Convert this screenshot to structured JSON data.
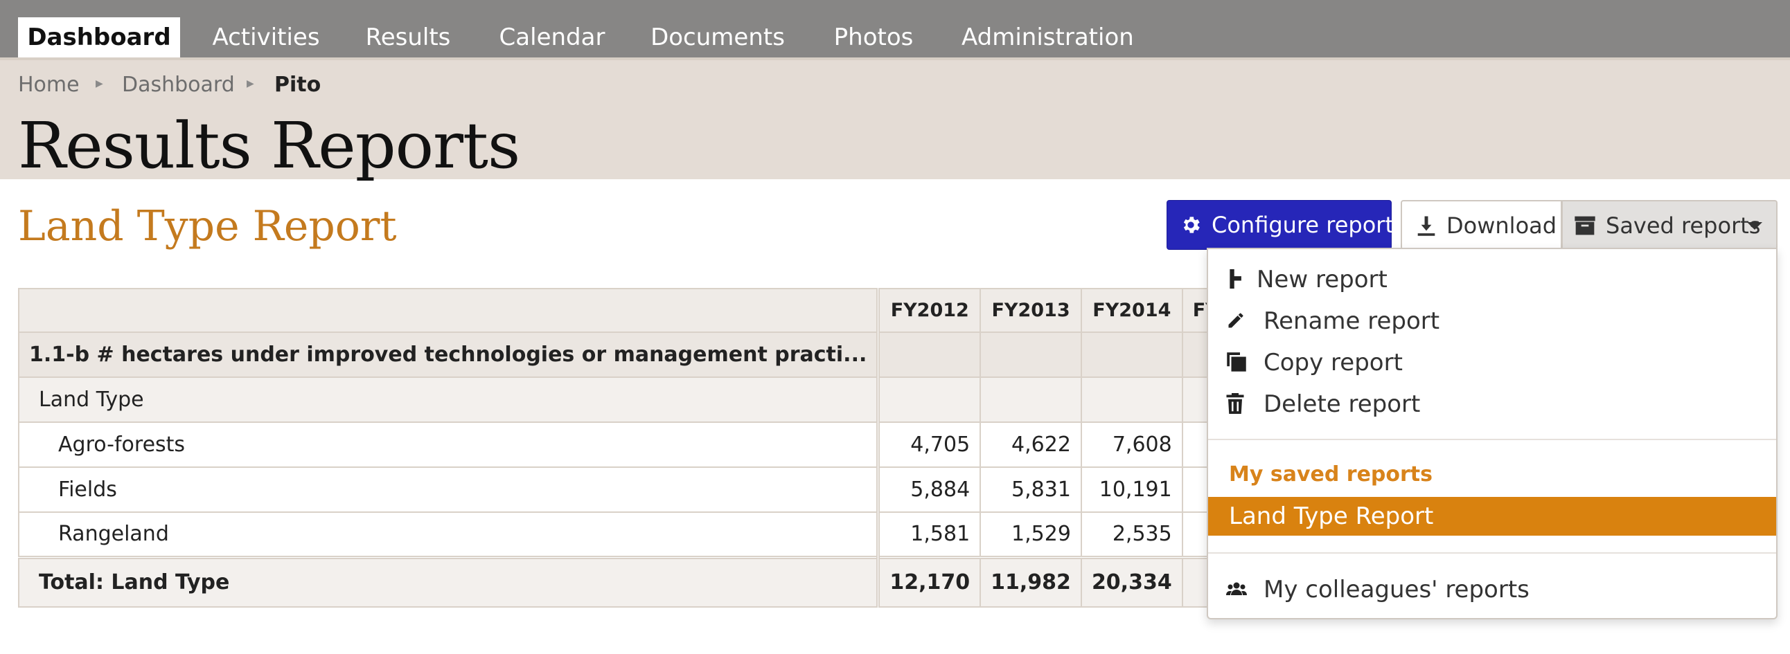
{
  "nav": {
    "tabs": [
      {
        "label": "Dashboard",
        "active": true
      },
      {
        "label": "Activities"
      },
      {
        "label": "Results"
      },
      {
        "label": "Calendar"
      },
      {
        "label": "Documents"
      },
      {
        "label": "Photos"
      },
      {
        "label": "Administration"
      }
    ]
  },
  "breadcrumb": {
    "items": [
      "Home",
      "Dashboard",
      "Pito"
    ]
  },
  "page": {
    "title": "Results Reports",
    "report_title": "Land Type Report"
  },
  "toolbar": {
    "configure_label": "Configure report",
    "configure_icon": "gear-icon",
    "download_label": "Download",
    "download_icon": "download-icon",
    "saved_label": "Saved reports",
    "saved_icon": "archive-icon",
    "accent_color": "#2626b8"
  },
  "table": {
    "headers": [
      "",
      "FY2012",
      "FY2013",
      "FY2014",
      "FY"
    ],
    "indicator_row": "1.1-b # hectares under improved technologies or management practi...",
    "group_row": "Land Type",
    "rows": [
      {
        "label": "Agro-forests",
        "values": [
          "4,705",
          "4,622",
          "7,608"
        ]
      },
      {
        "label": "Fields",
        "values": [
          "5,884",
          "5,831",
          "10,191"
        ]
      },
      {
        "label": "Rangeland",
        "values": [
          "1,581",
          "1,529",
          "2,535"
        ]
      }
    ],
    "total": {
      "label": "Total: Land Type",
      "values": [
        "12,170",
        "11,982",
        "20,334"
      ]
    }
  },
  "dropdown": {
    "actions": [
      {
        "label": "New report",
        "icon": "plus-icon"
      },
      {
        "label": "Rename report",
        "icon": "pencil-icon"
      },
      {
        "label": "Copy report",
        "icon": "copy-icon"
      },
      {
        "label": "Delete report",
        "icon": "trash-icon"
      }
    ],
    "my_saved_header": "My saved reports",
    "my_saved_items": [
      "Land Type Report"
    ],
    "colleagues_label": "My colleagues' reports",
    "colleagues_icon": "users-icon",
    "highlight_color": "#d9820f"
  }
}
